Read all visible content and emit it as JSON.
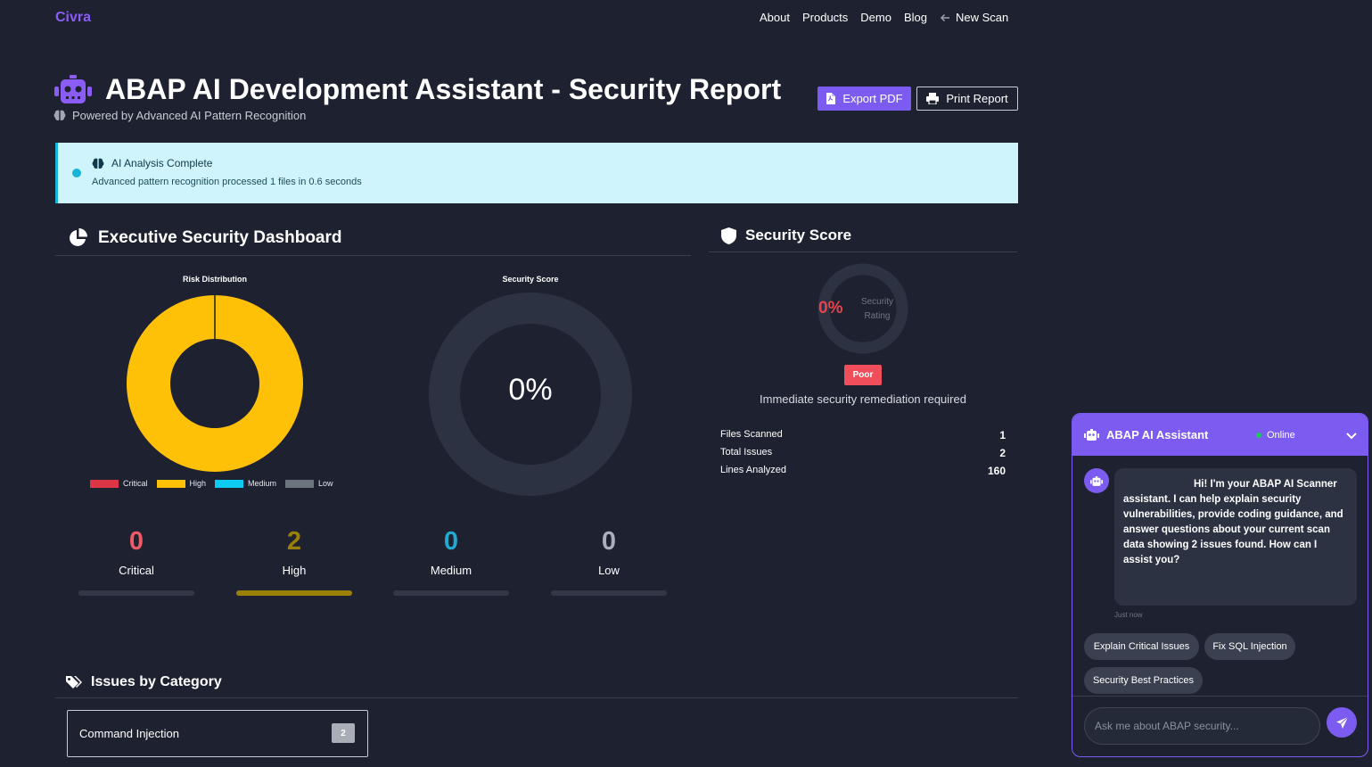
{
  "nav": {
    "brand": "Civra",
    "links": [
      "About",
      "Products",
      "Demo",
      "Blog"
    ],
    "new_scan": "New Scan"
  },
  "header": {
    "title": "ABAP AI Development Assistant - Security Report",
    "subtitle": "Powered by Advanced AI Pattern Recognition",
    "export_label": "Export PDF",
    "print_label": "Print Report"
  },
  "alert": {
    "title": "AI Analysis Complete",
    "text": "Advanced pattern recognition processed 1 files in 0.6 seconds"
  },
  "dashboard": {
    "title": "Executive Security Dashboard",
    "stats": [
      {
        "label": "Critical",
        "value": "0",
        "color": "#ef5a66",
        "fill": 0
      },
      {
        "label": "High",
        "value": "2",
        "color": "#9a7f08",
        "fill": 1
      },
      {
        "label": "Medium",
        "value": "0",
        "color": "#22a9cf",
        "fill": 0
      },
      {
        "label": "Low",
        "value": "0",
        "color": "#a9b0bb",
        "fill": 0
      }
    ]
  },
  "chart_data": [
    {
      "type": "pie",
      "title": "Risk Distribution",
      "categories": [
        "Critical",
        "High",
        "Medium",
        "Low"
      ],
      "values": [
        0,
        2,
        0,
        0
      ],
      "colors": [
        "#dc3545",
        "#ffc107",
        "#0dcaf0",
        "#6c757d"
      ],
      "legend": "bottom"
    },
    {
      "type": "pie",
      "title": "Security Score",
      "center_label": "0%",
      "values": [
        0,
        100
      ],
      "colors": [
        "#ef5a66",
        "#2c3242"
      ]
    }
  ],
  "score_panel": {
    "title": "Security Score",
    "percent": "0%",
    "caption": "Security Rating",
    "badge": "Poor",
    "remediation": "Immediate security remediation required",
    "metrics": [
      {
        "label": "Files Scanned",
        "value": "1"
      },
      {
        "label": "Total Issues",
        "value": "2"
      },
      {
        "label": "Lines Analyzed",
        "value": "160"
      }
    ]
  },
  "categories": {
    "title": "Issues by Category",
    "items": [
      {
        "name": "Command Injection",
        "count": "2"
      }
    ]
  },
  "chat": {
    "title": "ABAP AI Assistant",
    "status": "Online",
    "message": "Hi! I'm your ABAP AI Scanner assistant. I can help explain security vulnerabilities, provide coding guidance, and answer questions about your current scan data showing 2 issues found. How can I assist you?",
    "time": "Just now",
    "suggestions": [
      "Explain Critical Issues",
      "Fix SQL Injection",
      "Security Best Practices"
    ],
    "input_placeholder": "Ask me about ABAP security..."
  }
}
